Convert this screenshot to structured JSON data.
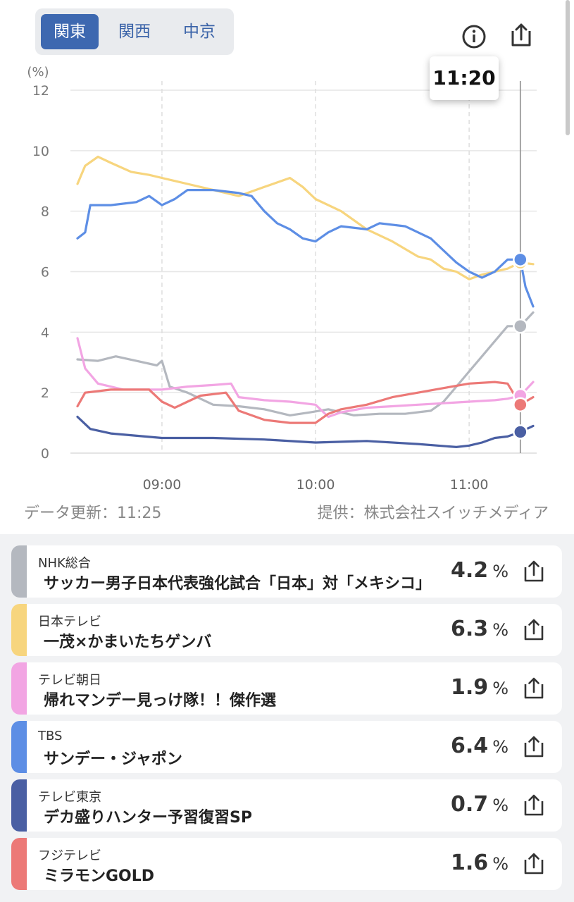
{
  "region_tabs": [
    {
      "label": "関東",
      "active": true
    },
    {
      "label": "関西",
      "active": false
    },
    {
      "label": "中京",
      "active": false
    }
  ],
  "icons": {
    "info": "info-circle-icon",
    "share": "share-upload-icon"
  },
  "tooltip_time": "11:20",
  "footer": {
    "updated": "データ更新：11:25",
    "provider": "提供：株式会社スイッチメディア"
  },
  "chart_data": {
    "type": "line",
    "ylabel": "(%)",
    "ylim": [
      0,
      12
    ],
    "yticks": [
      "0",
      "2",
      "4",
      "6",
      "8",
      "10",
      "12"
    ],
    "xlim": [
      "08:25",
      "11:25"
    ],
    "xticks": [
      "09:00",
      "10:00",
      "11:00"
    ],
    "grid": true,
    "cursor_time": "11:20",
    "series": [
      {
        "name": "NHK総合",
        "color": "#b4b8bf",
        "points": [
          [
            "08:27",
            3.1
          ],
          [
            "08:35",
            3.05
          ],
          [
            "08:42",
            3.2
          ],
          [
            "08:50",
            3.05
          ],
          [
            "08:58",
            2.9
          ],
          [
            "09:00",
            3.05
          ],
          [
            "09:03",
            2.2
          ],
          [
            "09:10",
            2.0
          ],
          [
            "09:20",
            1.6
          ],
          [
            "09:30",
            1.55
          ],
          [
            "09:40",
            1.45
          ],
          [
            "09:50",
            1.25
          ],
          [
            "09:58",
            1.35
          ],
          [
            "10:05",
            1.45
          ],
          [
            "10:15",
            1.25
          ],
          [
            "10:25",
            1.3
          ],
          [
            "10:35",
            1.3
          ],
          [
            "10:45",
            1.4
          ],
          [
            "10:50",
            1.7
          ],
          [
            "10:55",
            2.2
          ],
          [
            "11:00",
            2.7
          ],
          [
            "11:05",
            3.2
          ],
          [
            "11:10",
            3.7
          ],
          [
            "11:15",
            4.2
          ],
          [
            "11:20",
            4.2
          ],
          [
            "11:25",
            4.65
          ]
        ]
      },
      {
        "name": "日本テレビ",
        "color": "#f7d57e",
        "points": [
          [
            "08:27",
            8.9
          ],
          [
            "08:30",
            9.5
          ],
          [
            "08:35",
            9.8
          ],
          [
            "08:40",
            9.6
          ],
          [
            "08:48",
            9.3
          ],
          [
            "08:55",
            9.2
          ],
          [
            "09:00",
            9.1
          ],
          [
            "09:10",
            8.9
          ],
          [
            "09:20",
            8.7
          ],
          [
            "09:30",
            8.5
          ],
          [
            "09:40",
            8.8
          ],
          [
            "09:50",
            9.1
          ],
          [
            "09:55",
            8.8
          ],
          [
            "10:00",
            8.4
          ],
          [
            "10:10",
            8.0
          ],
          [
            "10:20",
            7.4
          ],
          [
            "10:30",
            7.0
          ],
          [
            "10:40",
            6.5
          ],
          [
            "10:45",
            6.4
          ],
          [
            "10:50",
            6.1
          ],
          [
            "10:55",
            6.0
          ],
          [
            "11:00",
            5.75
          ],
          [
            "11:05",
            5.9
          ],
          [
            "11:10",
            6.0
          ],
          [
            "11:15",
            6.1
          ],
          [
            "11:20",
            6.3
          ],
          [
            "11:25",
            6.25
          ]
        ]
      },
      {
        "name": "テレビ朝日",
        "color": "#f2a5e3",
        "points": [
          [
            "08:27",
            3.8
          ],
          [
            "08:30",
            2.8
          ],
          [
            "08:35",
            2.3
          ],
          [
            "08:45",
            2.1
          ],
          [
            "09:00",
            2.1
          ],
          [
            "09:10",
            2.2
          ],
          [
            "09:20",
            2.25
          ],
          [
            "09:27",
            2.3
          ],
          [
            "09:30",
            1.85
          ],
          [
            "09:40",
            1.75
          ],
          [
            "09:50",
            1.7
          ],
          [
            "10:00",
            1.6
          ],
          [
            "10:05",
            1.2
          ],
          [
            "10:10",
            1.35
          ],
          [
            "10:20",
            1.5
          ],
          [
            "10:30",
            1.55
          ],
          [
            "10:40",
            1.6
          ],
          [
            "10:50",
            1.65
          ],
          [
            "11:00",
            1.7
          ],
          [
            "11:10",
            1.75
          ],
          [
            "11:15",
            1.8
          ],
          [
            "11:20",
            1.9
          ],
          [
            "11:25",
            2.35
          ]
        ]
      },
      {
        "name": "TBS",
        "color": "#5d8ee5",
        "points": [
          [
            "08:27",
            7.1
          ],
          [
            "08:30",
            7.3
          ],
          [
            "08:32",
            8.2
          ],
          [
            "08:40",
            8.2
          ],
          [
            "08:50",
            8.3
          ],
          [
            "08:55",
            8.5
          ],
          [
            "09:00",
            8.2
          ],
          [
            "09:05",
            8.4
          ],
          [
            "09:10",
            8.7
          ],
          [
            "09:20",
            8.7
          ],
          [
            "09:30",
            8.6
          ],
          [
            "09:35",
            8.5
          ],
          [
            "09:40",
            8.0
          ],
          [
            "09:45",
            7.6
          ],
          [
            "09:50",
            7.4
          ],
          [
            "09:55",
            7.1
          ],
          [
            "10:00",
            7.0
          ],
          [
            "10:05",
            7.3
          ],
          [
            "10:10",
            7.5
          ],
          [
            "10:20",
            7.4
          ],
          [
            "10:25",
            7.6
          ],
          [
            "10:35",
            7.5
          ],
          [
            "10:45",
            7.1
          ],
          [
            "10:50",
            6.7
          ],
          [
            "10:55",
            6.3
          ],
          [
            "11:00",
            6.0
          ],
          [
            "11:05",
            5.8
          ],
          [
            "11:10",
            6.0
          ],
          [
            "11:15",
            6.4
          ],
          [
            "11:20",
            6.4
          ],
          [
            "11:22",
            5.5
          ],
          [
            "11:25",
            4.85
          ]
        ]
      },
      {
        "name": "テレビ東京",
        "color": "#4a5fa3",
        "points": [
          [
            "08:27",
            1.2
          ],
          [
            "08:32",
            0.8
          ],
          [
            "08:40",
            0.65
          ],
          [
            "09:00",
            0.5
          ],
          [
            "09:20",
            0.5
          ],
          [
            "09:40",
            0.45
          ],
          [
            "10:00",
            0.35
          ],
          [
            "10:20",
            0.4
          ],
          [
            "10:40",
            0.3
          ],
          [
            "10:55",
            0.2
          ],
          [
            "11:00",
            0.25
          ],
          [
            "11:05",
            0.35
          ],
          [
            "11:10",
            0.5
          ],
          [
            "11:15",
            0.55
          ],
          [
            "11:20",
            0.7
          ],
          [
            "11:25",
            0.9
          ]
        ]
      },
      {
        "name": "フジテレビ",
        "color": "#ec7977",
        "points": [
          [
            "08:27",
            1.55
          ],
          [
            "08:30",
            2.0
          ],
          [
            "08:40",
            2.1
          ],
          [
            "08:50",
            2.1
          ],
          [
            "08:55",
            2.1
          ],
          [
            "09:00",
            1.7
          ],
          [
            "09:05",
            1.5
          ],
          [
            "09:10",
            1.7
          ],
          [
            "09:15",
            1.9
          ],
          [
            "09:25",
            2.0
          ],
          [
            "09:30",
            1.4
          ],
          [
            "09:40",
            1.1
          ],
          [
            "09:50",
            1.0
          ],
          [
            "10:00",
            1.0
          ],
          [
            "10:05",
            1.3
          ],
          [
            "10:10",
            1.45
          ],
          [
            "10:20",
            1.6
          ],
          [
            "10:30",
            1.85
          ],
          [
            "10:40",
            2.0
          ],
          [
            "10:50",
            2.15
          ],
          [
            "11:00",
            2.3
          ],
          [
            "11:10",
            2.35
          ],
          [
            "11:15",
            2.3
          ],
          [
            "11:20",
            1.6
          ],
          [
            "11:25",
            1.85
          ]
        ]
      }
    ]
  },
  "programs": [
    {
      "station": "NHK総合",
      "title": "サッカー男子日本代表強化試合「日本」対「メキシコ」",
      "rating": "4.2",
      "unit": "%",
      "color": "#b4b8bf"
    },
    {
      "station": "日本テレビ",
      "title": "一茂×かまいたちゲンバ",
      "rating": "6.3",
      "unit": "%",
      "color": "#f7d57e"
    },
    {
      "station": "テレビ朝日",
      "title": "帰れマンデー見っけ隊！！傑作選",
      "rating": "1.9",
      "unit": "%",
      "color": "#f2a5e3"
    },
    {
      "station": "TBS",
      "title": "サンデー・ジャポン",
      "rating": "6.4",
      "unit": "%",
      "color": "#5d8ee5"
    },
    {
      "station": "テレビ東京",
      "title": "デカ盛りハンター予習復習SP",
      "rating": "0.7",
      "unit": "%",
      "color": "#4a5fa3"
    },
    {
      "station": "フジテレビ",
      "title": "ミラモンGOLD",
      "rating": "1.6",
      "unit": "%",
      "color": "#ec7977"
    }
  ]
}
